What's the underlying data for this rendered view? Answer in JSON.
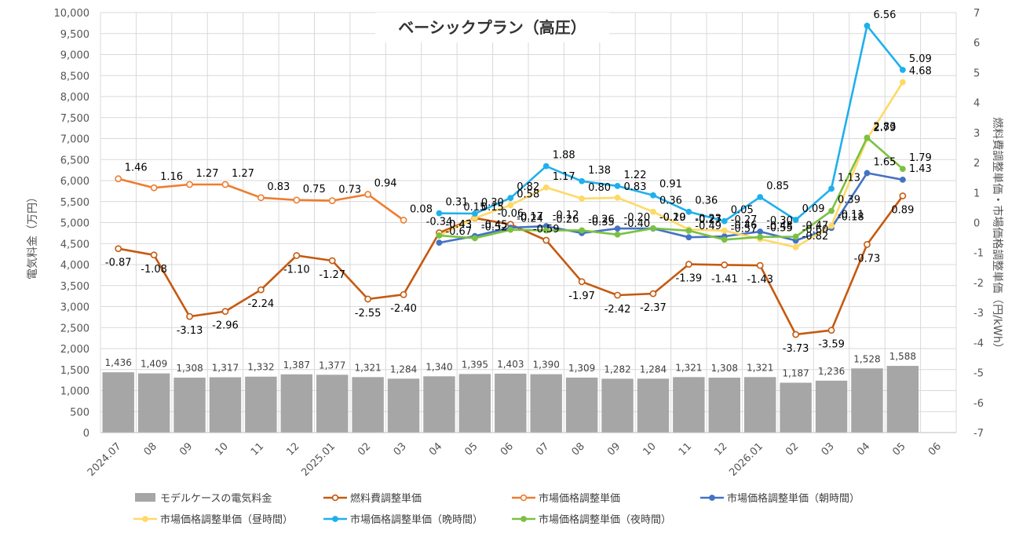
{
  "chart_data": {
    "type": "bar+line",
    "title": "ベーシックプラン（高圧）",
    "ylabel_left": "電気料金（万円）",
    "ylabel_right": "燃料費調整単価・市場価格調整単価（円/kWh）",
    "ylim_left": [
      0,
      10000
    ],
    "ylim_right": [
      -7,
      7
    ],
    "y_ticks_left": [
      "0",
      "500",
      "1,000",
      "1,500",
      "2,000",
      "2,500",
      "3,000",
      "3,500",
      "4,000",
      "4,500",
      "5,000",
      "5,500",
      "6,000",
      "6,500",
      "7,000",
      "7,500",
      "8,000",
      "8,500",
      "9,000",
      "9,500",
      "10,000"
    ],
    "y_ticks_right": [
      "-7",
      "-6",
      "-5",
      "-4",
      "-3",
      "-2",
      "-1",
      "0",
      "1",
      "2",
      "3",
      "4",
      "5",
      "6",
      "7"
    ],
    "categories": [
      "2024.07",
      "08",
      "09",
      "10",
      "11",
      "12",
      "2025.01",
      "02",
      "03",
      "04",
      "05",
      "06",
      "07",
      "08",
      "09",
      "10",
      "11",
      "12",
      "2026.01",
      "02",
      "03",
      "04",
      "05",
      "06"
    ],
    "grid": true,
    "legend_position": "bottom",
    "series": [
      {
        "name": "モデルケースの電気料金",
        "kind": "bar",
        "axis": "left",
        "color": "#a6a6a6",
        "values": [
          1436,
          1409,
          1308,
          1317,
          1332,
          1387,
          1377,
          1321,
          1284,
          1340,
          1395,
          1403,
          1390,
          1309,
          1282,
          1284,
          1321,
          1308,
          1321,
          1187,
          1236,
          1528,
          1588,
          null
        ],
        "labels": [
          "1,436",
          "1,409",
          "1,308",
          "1,317",
          "1,332",
          "1,387",
          "1,377",
          "1,321",
          "1,284",
          "1,340",
          "1,395",
          "1,403",
          "1,390",
          "1,309",
          "1,282",
          "1,284",
          "1,321",
          "1,308",
          "1,321",
          "1,187",
          "1,236",
          "1,528",
          "1,588",
          ""
        ]
      },
      {
        "name": "燃料費調整単価",
        "kind": "line",
        "axis": "right",
        "color": "#c55a11",
        "marker": "hollow",
        "values": [
          -0.87,
          -1.08,
          -3.13,
          -2.96,
          -2.24,
          -1.1,
          -1.27,
          -2.55,
          -2.4,
          -0.34,
          0.15,
          -0.06,
          -0.59,
          -1.97,
          -2.42,
          -2.37,
          -1.39,
          -1.41,
          -1.43,
          -3.73,
          -3.59,
          -0.73,
          0.89,
          null
        ],
        "labels": [
          "-0.87",
          "-1.08",
          "-3.13",
          "-2.96",
          "-2.24",
          "-1.10",
          "-1.27",
          "-2.55",
          "-2.40",
          "-0.34",
          "0.15",
          "-0.06",
          "-0.59",
          "-1.97",
          "-2.42",
          "-2.37",
          "-1.39",
          "-1.41",
          "-1.43",
          "-3.73",
          "-3.59",
          "-0.73",
          "0.89",
          ""
        ]
      },
      {
        "name": "市場価格調整単価",
        "kind": "line",
        "axis": "right",
        "color": "#ed7d31",
        "marker": "hollow",
        "values": [
          1.46,
          1.16,
          1.27,
          1.27,
          0.83,
          0.75,
          0.73,
          0.94,
          0.08,
          null,
          null,
          null,
          null,
          null,
          null,
          null,
          null,
          null,
          null,
          null,
          null,
          null,
          null,
          null
        ],
        "labels": [
          "1.46",
          "1.16",
          "1.27",
          "1.27",
          "0.83",
          "0.75",
          "0.73",
          "0.94",
          "0.08",
          "",
          "",
          "",
          "",
          "",
          "",
          "",
          "",
          "",
          "",
          "",
          "",
          "",
          "",
          ""
        ]
      },
      {
        "name": "市場価格調整単価（朝時間）",
        "kind": "line",
        "axis": "right",
        "color": "#4472c4",
        "marker": "filled",
        "values": [
          null,
          null,
          null,
          null,
          null,
          null,
          null,
          null,
          null,
          -0.67,
          -0.45,
          -0.17,
          -0.12,
          -0.35,
          -0.2,
          -0.2,
          -0.49,
          -0.46,
          -0.3,
          -0.6,
          -0.18,
          1.65,
          1.43,
          null
        ],
        "labels": [
          "",
          "",
          "",
          "",
          "",
          "",
          "",
          "",
          "",
          "-0.67",
          "-0.45",
          "-0.17",
          "-0.12",
          "-0.35",
          "-0.20",
          "-0.20",
          "-0.49",
          "-0.46",
          "-0.30",
          "-0.60",
          "-0.18",
          "1.65",
          "1.43",
          ""
        ]
      },
      {
        "name": "市場価格調整単価（昼時間）",
        "kind": "line",
        "axis": "right",
        "color": "#ffd966",
        "marker": "filled",
        "values": [
          null,
          null,
          null,
          null,
          null,
          null,
          null,
          null,
          null,
          -0.43,
          0.15,
          0.58,
          1.17,
          0.8,
          0.83,
          0.36,
          -0.23,
          -0.27,
          -0.55,
          -0.82,
          -0.11,
          2.79,
          4.68,
          null
        ],
        "labels": [
          "",
          "",
          "",
          "",
          "",
          "",
          "",
          "",
          "",
          "-0.43",
          "0.15",
          "0.58",
          "1.17",
          "0.80",
          "0.83",
          "0.36",
          "-0.23",
          "-0.27",
          "-0.55",
          "-0.82",
          "-0.11",
          "2.79",
          "4.68",
          ""
        ]
      },
      {
        "name": "市場価格調整単価（晩時間）",
        "kind": "line",
        "axis": "right",
        "color": "#1fb0ec",
        "marker": "filled",
        "values": [
          null,
          null,
          null,
          null,
          null,
          null,
          null,
          null,
          null,
          0.31,
          0.3,
          0.82,
          1.88,
          1.38,
          1.22,
          0.91,
          0.36,
          0.05,
          0.85,
          0.09,
          1.13,
          6.56,
          5.09,
          null
        ],
        "labels": [
          "",
          "",
          "",
          "",
          "",
          "",
          "",
          "",
          "",
          "0.31",
          "0.30",
          "0.82",
          "1.88",
          "1.38",
          "1.22",
          "0.91",
          "0.36",
          "0.05",
          "0.85",
          "0.09",
          "1.13",
          "6.56",
          "5.09",
          ""
        ]
      },
      {
        "name": "市場価格調整単価（夜時間）",
        "kind": "line",
        "axis": "right",
        "color": "#7ac143",
        "marker": "filled",
        "values": [
          null,
          null,
          null,
          null,
          null,
          null,
          null,
          null,
          null,
          -0.43,
          -0.52,
          -0.24,
          -0.26,
          -0.26,
          -0.4,
          -0.19,
          -0.27,
          -0.57,
          -0.48,
          -0.47,
          0.39,
          2.83,
          1.79,
          null
        ],
        "labels": [
          "",
          "",
          "",
          "",
          "",
          "",
          "",
          "",
          "",
          "-0.43",
          "-0.52",
          "-0.24",
          "-0.26",
          "-0.26",
          "-0.40",
          "-0.19",
          "-0.27",
          "-0.57",
          "-0.48",
          "-0.47",
          "0.39",
          "2.83",
          "1.79",
          ""
        ]
      }
    ]
  }
}
